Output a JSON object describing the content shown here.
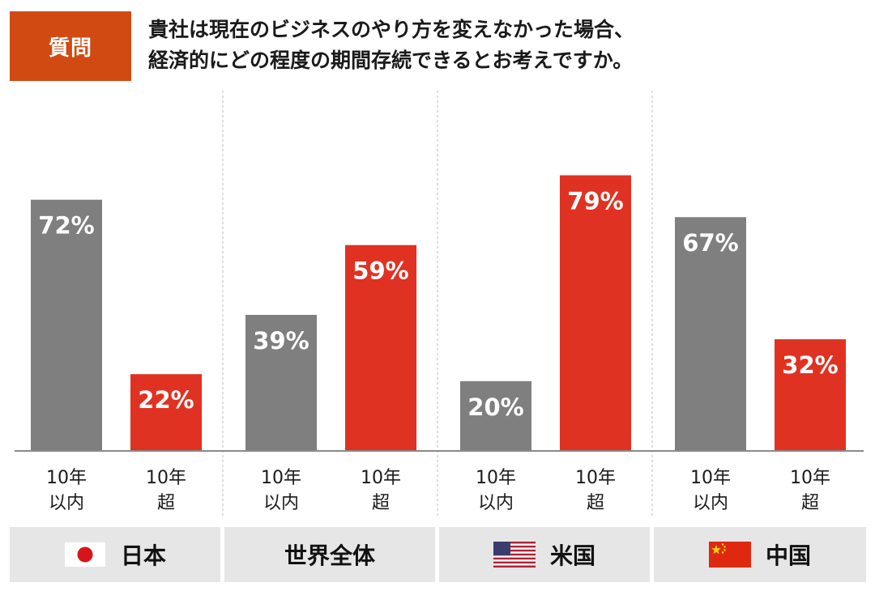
{
  "question": {
    "badge": "質問",
    "line1": "貴社は現在のビジネスのやり方を変えなかった場合、",
    "line2": "経済的にどの程度の期間存続できるとお考えですか。"
  },
  "colors": {
    "gray": "#7f7f7f",
    "red": "#e03222",
    "badge": "#d14a12",
    "region_bg": "#e6e6e6"
  },
  "chart_data": {
    "type": "bar",
    "unit": "%",
    "series_labels": [
      "10年\n以内",
      "10年\n超"
    ],
    "groups": [
      {
        "region": "日本",
        "flag": "japan-flag-icon",
        "values": [
          72,
          22
        ]
      },
      {
        "region": "世界全体",
        "flag": "",
        "values": [
          39,
          59
        ]
      },
      {
        "region": "米国",
        "flag": "usa-flag-icon",
        "values": [
          20,
          79
        ]
      },
      {
        "region": "中国",
        "flag": "china-flag-icon",
        "values": [
          67,
          32
        ]
      }
    ],
    "ylim": [
      0,
      100
    ]
  }
}
